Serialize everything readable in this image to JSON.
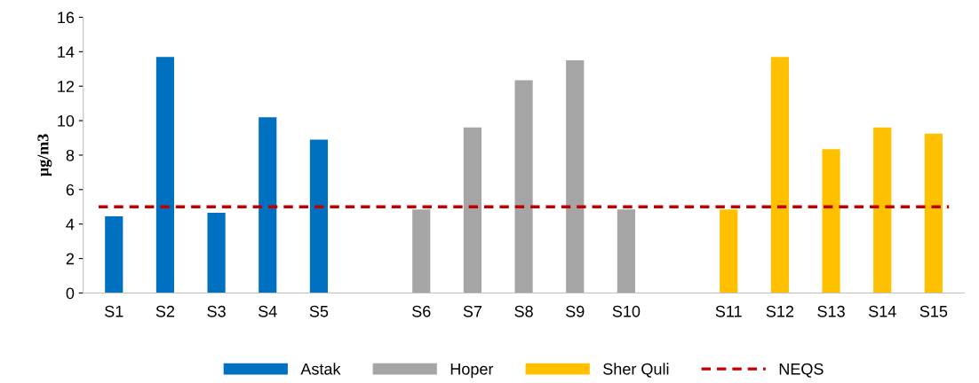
{
  "chart_data": {
    "type": "bar",
    "ylabel": "µg/m3",
    "categories": [
      "S1",
      "S2",
      "S3",
      "S4",
      "S5",
      null,
      "S6",
      "S7",
      "S8",
      "S9",
      "S10",
      null,
      "S11",
      "S12",
      "S13",
      "S14",
      "S15"
    ],
    "series": [
      {
        "name": "Astak",
        "color": "#0070c0",
        "values": [
          4.45,
          13.7,
          4.65,
          10.2,
          8.9,
          null,
          null,
          null,
          null,
          null,
          null,
          null,
          null,
          null,
          null,
          null,
          null
        ]
      },
      {
        "name": "Hoper",
        "color": "#a5a5a5",
        "values": [
          null,
          null,
          null,
          null,
          null,
          null,
          4.85,
          9.6,
          12.35,
          13.5,
          4.85,
          null,
          null,
          null,
          null,
          null,
          null
        ]
      },
      {
        "name": "Sher Quli",
        "color": "#ffc000",
        "values": [
          null,
          null,
          null,
          null,
          null,
          null,
          null,
          null,
          null,
          null,
          null,
          null,
          4.85,
          13.7,
          8.35,
          9.6,
          9.25
        ]
      }
    ],
    "ref_lines": [
      {
        "axis": "y",
        "value": 5,
        "label": "NEQS",
        "color": "#c00000",
        "line_style": "dashed"
      }
    ],
    "ylim": [
      0,
      16
    ],
    "yticks": [
      0,
      2,
      4,
      6,
      8,
      10,
      12,
      14,
      16
    ],
    "grid": false,
    "legend": "bottom"
  }
}
